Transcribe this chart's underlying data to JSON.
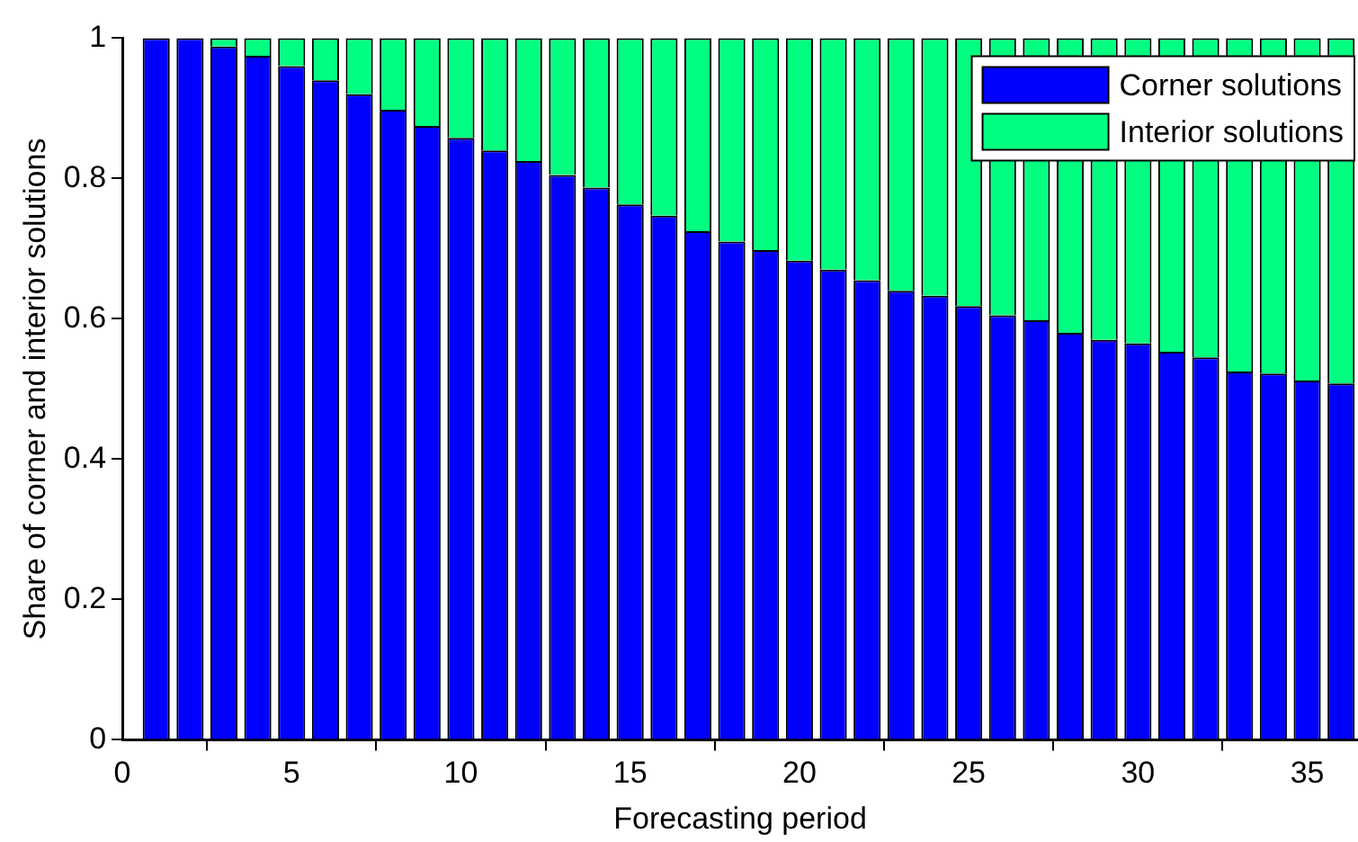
{
  "chart_data": {
    "type": "bar",
    "stacked": true,
    "xlabel": "Forecasting period",
    "ylabel": "Share of corner and interior solutions",
    "x": [
      1,
      2,
      3,
      4,
      5,
      6,
      7,
      8,
      9,
      10,
      11,
      12,
      13,
      14,
      15,
      16,
      17,
      18,
      19,
      20,
      21,
      22,
      23,
      24,
      25,
      26,
      27,
      28,
      29,
      30,
      31,
      32,
      33,
      34,
      35,
      36
    ],
    "series": [
      {
        "name": "Corner solutions",
        "color": "#0000ff",
        "values": [
          1.0,
          1.0,
          0.988,
          0.975,
          0.96,
          0.94,
          0.92,
          0.898,
          0.875,
          0.858,
          0.84,
          0.825,
          0.805,
          0.787,
          0.763,
          0.747,
          0.725,
          0.71,
          0.698,
          0.683,
          0.67,
          0.655,
          0.64,
          0.633,
          0.618,
          0.605,
          0.598,
          0.58,
          0.57,
          0.565,
          0.553,
          0.545,
          0.525,
          0.522,
          0.512,
          0.508
        ]
      },
      {
        "name": "Interior solutions",
        "color": "#00ff80",
        "values": [
          0.0,
          0.0,
          0.012,
          0.025,
          0.04,
          0.06,
          0.08,
          0.102,
          0.125,
          0.142,
          0.16,
          0.175,
          0.195,
          0.213,
          0.237,
          0.253,
          0.275,
          0.29,
          0.302,
          0.317,
          0.33,
          0.345,
          0.36,
          0.367,
          0.382,
          0.395,
          0.402,
          0.42,
          0.43,
          0.435,
          0.447,
          0.455,
          0.475,
          0.478,
          0.488,
          0.492
        ]
      }
    ],
    "xlim": [
      0,
      36.5
    ],
    "xticks": [
      0,
      5,
      10,
      15,
      20,
      25,
      30,
      35
    ],
    "ylim": [
      0,
      1
    ],
    "yticks": [
      0,
      0.2,
      0.4,
      0.6,
      0.8,
      1
    ],
    "legend": "top right"
  }
}
